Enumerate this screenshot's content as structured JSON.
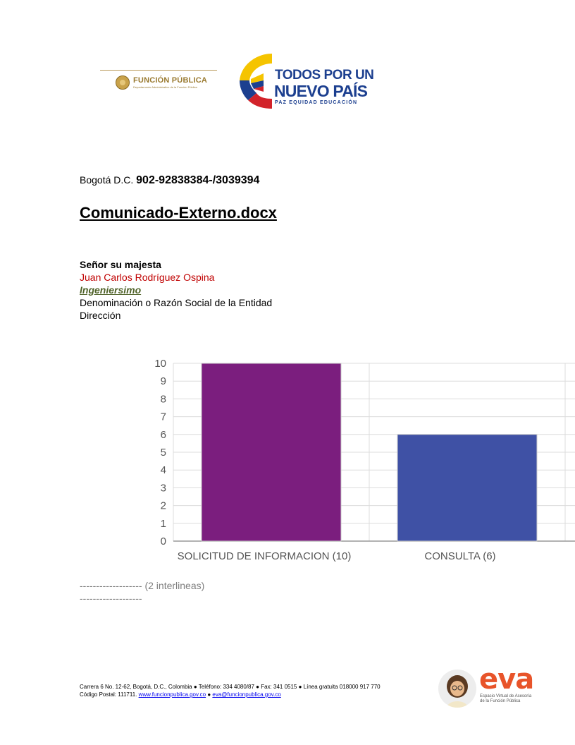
{
  "header": {
    "funcion_publica": {
      "title": "FUNCIÓN PÚBLICA",
      "subtitle": "Departamento Administrativo de la Función Pública"
    },
    "nuevo_pais": {
      "line1": "TODOS POR UN",
      "line2": "NUEVO PAÍS",
      "line3": "PAZ   EQUIDAD   EDUCACIÓN"
    }
  },
  "letter": {
    "city": "Bogotá D.C.",
    "reference": "902-92838384-/3039394",
    "title": "Comunicado-Externo.docx",
    "salutation": "Señor su majesta",
    "recipient_name": "Juan Carlos Rodríguez Ospina",
    "recipient_title": "Ingeniersimo",
    "entity": "Denominación o Razón Social de la Entidad",
    "address": "Dirección",
    "separator1": "------------------- (2 interlineas)",
    "separator2": "-------------------"
  },
  "chart_data": {
    "type": "bar",
    "categories": [
      "SOLICITUD DE INFORMACION (10)",
      "CONSULTA (6)"
    ],
    "values": [
      10,
      6
    ],
    "colors": [
      "#7b1e7e",
      "#3f51a5"
    ],
    "ylim": [
      0,
      10
    ],
    "yticks": [
      "0",
      "1",
      "2",
      "3",
      "4",
      "5",
      "6",
      "7",
      "8",
      "9",
      "10"
    ],
    "grid": true,
    "title": "",
    "xlabel": "",
    "ylabel": ""
  },
  "footer": {
    "line1": "Carrera 6 No. 12-62, Bogotá, D.C., Colombia ● Teléfono: 334 4080/87 ● Fax: 341 0515 ● Línea gratuita 018000 917 770",
    "postal": "Código Postal: 111711.",
    "website": "www.funcionpublica.gov.co",
    "bullet": "●",
    "email": "eva@funcionpublica.gov.co",
    "eva_word": "eva",
    "eva_sub1": "Espacio Virtual de Asesoría",
    "eva_sub2": "de la Función Pública"
  }
}
